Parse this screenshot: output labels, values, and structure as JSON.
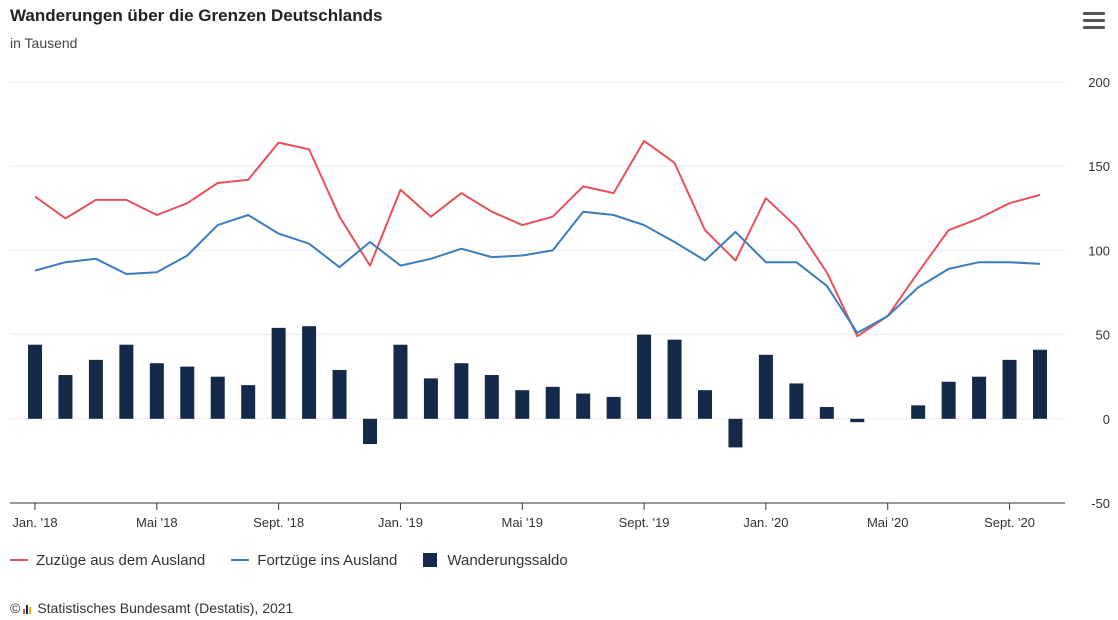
{
  "title": "Wanderungen über die Grenzen Deutschlands",
  "subtitle": "in Tausend",
  "menu_icon": "hamburger-menu-icon",
  "legend": [
    {
      "label": "Zuzüge aus dem Ausland",
      "color": "#e8505b",
      "kind": "line"
    },
    {
      "label": "Fortzüge ins Ausland",
      "color": "#3a7dbd",
      "kind": "line"
    },
    {
      "label": "Wanderungssaldo",
      "color": "#15294a",
      "kind": "bar"
    }
  ],
  "credits": "Statistisches Bundesamt (Destatis), 2021",
  "credits_prefix": "©",
  "chart_data": {
    "type": "bar",
    "categories": [
      "Jan. '18",
      "Feb. '18",
      "März '18",
      "Apr. '18",
      "Mai '18",
      "Juni '18",
      "Juli '18",
      "Aug. '18",
      "Sept. '18",
      "Okt. '18",
      "Nov. '18",
      "Dez. '18",
      "Jan. '19",
      "Feb. '19",
      "März '19",
      "Apr. '19",
      "Mai '19",
      "Juni '19",
      "Juli '19",
      "Aug. '19",
      "Sept. '19",
      "Okt. '19",
      "Nov. '19",
      "Dez. '19",
      "Jan. '20",
      "Feb. '20",
      "März '20",
      "Apr. '20",
      "Mai '20",
      "Juni '20",
      "Juli '20",
      "Aug. '20",
      "Sept. '20",
      "Okt. '20"
    ],
    "x_tick_labels": [
      "Jan. '18",
      "Mai '18",
      "Sept. '18",
      "Jan. '19",
      "Mai '19",
      "Sept. '19",
      "Jan. '20",
      "Mai '20",
      "Sept. '20"
    ],
    "series": [
      {
        "name": "Zuzüge aus dem Ausland",
        "type": "line",
        "color": "#e8505b",
        "values": [
          132,
          119,
          130,
          130,
          121,
          128,
          140,
          142,
          164,
          160,
          120,
          91,
          136,
          120,
          134,
          123,
          115,
          120,
          138,
          134,
          165,
          152,
          112,
          94,
          131,
          114,
          87,
          49,
          61,
          87,
          112,
          119,
          128,
          133
        ]
      },
      {
        "name": "Fortzüge ins Ausland",
        "type": "line",
        "color": "#3a7dbd",
        "values": [
          88,
          93,
          95,
          86,
          87,
          97,
          115,
          121,
          110,
          104,
          90,
          105,
          91,
          95,
          101,
          96,
          97,
          100,
          123,
          121,
          115,
          105,
          94,
          111,
          93,
          93,
          79,
          51,
          61,
          78,
          89,
          93,
          93,
          92
        ]
      },
      {
        "name": "Wanderungssaldo",
        "type": "bar",
        "color": "#15294a",
        "values": [
          44,
          26,
          35,
          44,
          33,
          31,
          25,
          20,
          54,
          55,
          29,
          -15,
          44,
          24,
          33,
          26,
          17,
          19,
          15,
          13,
          50,
          47,
          17,
          -17,
          38,
          21,
          7,
          -2,
          0,
          8,
          22,
          25,
          35,
          41
        ]
      }
    ],
    "y_ticks": [
      -50,
      0,
      50,
      100,
      150,
      200
    ],
    "ylim": [
      -50,
      200
    ],
    "grid": true
  }
}
